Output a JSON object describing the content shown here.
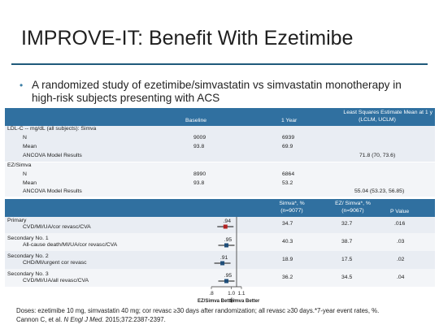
{
  "title": "IMPROVE-IT: Benefit With Ezetimibe",
  "bullet": "A randomized study of ezetimibe/simvastatin vs simvastatin monotherapy in high-risk subjects presenting with ACS",
  "table1": {
    "headers": {
      "baseline": "Baseline",
      "year1": "1 Year",
      "lsm_line1": "Least Squares Estimate Mean at 1 y",
      "lsm_line2": "(LCLM, UCLM)"
    },
    "sections": [
      {
        "label": "LDL-C -- mg/dL (all subjects): Simva",
        "rows": [
          {
            "label": "N",
            "baseline": "9009",
            "year1": "6939",
            "lsm": ""
          },
          {
            "label": "Mean",
            "baseline": "93.8",
            "year1": "69.9",
            "lsm": ""
          },
          {
            "label": "ANCOVA Model Results",
            "baseline": "",
            "year1": "",
            "lsm": "71.8 (70, 73.6)"
          }
        ]
      },
      {
        "label": "EZ/Simva",
        "rows": [
          {
            "label": "N",
            "baseline": "8990",
            "year1": "6864",
            "lsm": ""
          },
          {
            "label": "Mean",
            "baseline": "93.8",
            "year1": "53.2",
            "lsm": ""
          },
          {
            "label": "ANCOVA Model Results",
            "baseline": "",
            "year1": "",
            "lsm": "55.04 (53.23, 56.85)"
          }
        ]
      }
    ]
  },
  "table2": {
    "headers": {
      "simva_line1": "Simva*, %",
      "simva_line2": "(n=9077)",
      "ez_line1": "EZ/ Simva*, %",
      "ez_line2": "(n=9067)",
      "p": "P Value"
    },
    "rows": [
      {
        "group": "Primary",
        "sub": "CVD/MI/UA/cor revasc/CVA",
        "hr_label": ".94",
        "simva": "34.7",
        "ez": "32.7",
        "p": ".016"
      },
      {
        "group": "Secondary No. 1",
        "sub": "All-cause death/MI/UA/cor revasc/CVA",
        "hr_label": ".95",
        "simva": "40.3",
        "ez": "38.7",
        "p": ".03"
      },
      {
        "group": "Secondary No. 2",
        "sub": "CHD/MI/urgent cor revasc",
        "hr_label": ".91",
        "simva": "18.9",
        "ez": "17.5",
        "p": ".02"
      },
      {
        "group": "Secondary No. 3",
        "sub": "CVD/MI/UA/all revasc/CVA",
        "hr_label": ".95",
        "simva": "36.2",
        "ez": "34.5",
        "p": ".04"
      }
    ],
    "axis": {
      "ticks": [
        ".8",
        "1.0",
        "1.1"
      ],
      "left_label": "EZ/Simva Better",
      "right_label": "Simva Better"
    }
  },
  "chart_data": {
    "type": "scatter",
    "title": "",
    "xlabel": "",
    "ylabel": "",
    "xlim": [
      0.8,
      1.1
    ],
    "categories": [
      "Primary",
      "Secondary No. 1",
      "Secondary No. 2",
      "Secondary No. 3"
    ],
    "values": [
      0.94,
      0.95,
      0.91,
      0.95
    ],
    "x_ticks": [
      0.8,
      1.0,
      1.1
    ],
    "reference_line": 1.0,
    "colors": {
      "primary": "#b22222",
      "secondary": "#1f4e79"
    }
  },
  "footnote_line1": "Doses: ezetimibe 10 mg, simvastatin 40 mg; cor revasc ≥30 days after randomization; all revasc ≥30 days.*7-year event rates, %.",
  "footnote_line2_prefix": "Cannon C, et al. ",
  "footnote_line2_journal": "N Engl J Med.",
  "footnote_line2_suffix": " 2015;372:2387-2397."
}
